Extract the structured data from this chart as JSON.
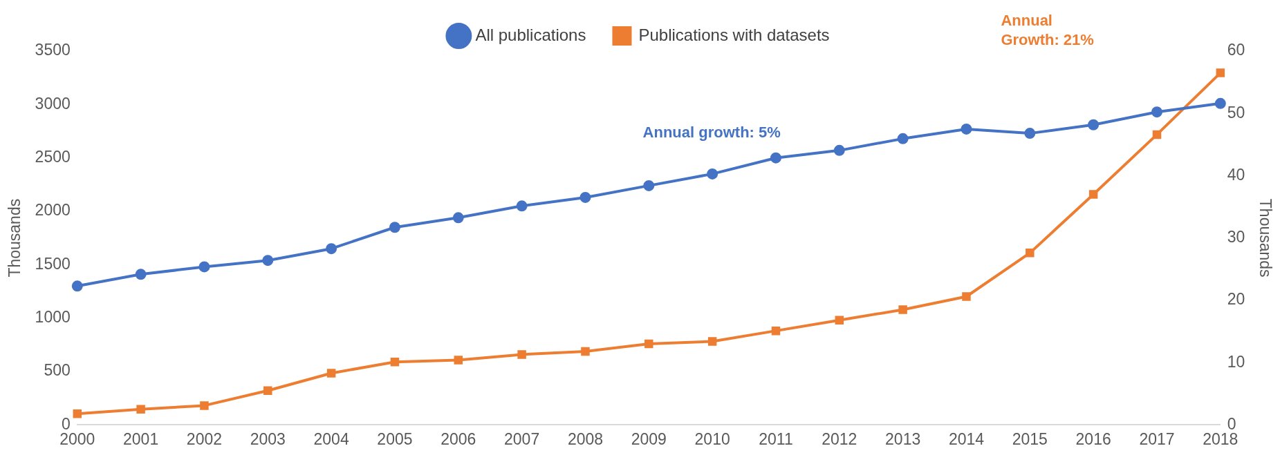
{
  "chart_data": {
    "type": "line",
    "categories": [
      "2000",
      "2001",
      "2002",
      "2003",
      "2004",
      "2005",
      "2006",
      "2007",
      "2008",
      "2009",
      "2010",
      "2011",
      "2012",
      "2013",
      "2014",
      "2015",
      "2016",
      "2017",
      "2018"
    ],
    "series": [
      {
        "name": "All publications",
        "color": "#4472c4",
        "marker": "circle",
        "values": [
          1300,
          1410,
          1480,
          1540,
          1650,
          1850,
          1940,
          2050,
          2130,
          2240,
          2350,
          2500,
          2570,
          2680,
          2770,
          2730,
          2810,
          2930,
          3010
        ]
      },
      {
        "name": "Publications with datasets",
        "color": "#ed7d31",
        "marker": "square",
        "axis": "y2",
        "values": [
          1.8,
          2.5,
          3.1,
          5.5,
          8.3,
          10.1,
          10.4,
          11.3,
          11.8,
          13.0,
          13.4,
          15.1,
          16.8,
          18.5,
          20.6,
          27.6,
          37.0,
          46.6,
          56.5
        ]
      }
    ],
    "ylabel": "Thousands",
    "y2label": "Thousands",
    "ylim": [
      0,
      3500
    ],
    "yticks": [
      0,
      500,
      1000,
      1500,
      2000,
      2500,
      3000,
      3500
    ],
    "y2lim": [
      0,
      60
    ],
    "y2ticks": [
      0,
      10,
      20,
      30,
      40,
      50,
      60
    ],
    "annotations": [
      "Annual growth: 5%",
      "Annual\nGrowth: 21%"
    ],
    "legend": "top",
    "grid": false,
    "line_style": "solid"
  }
}
